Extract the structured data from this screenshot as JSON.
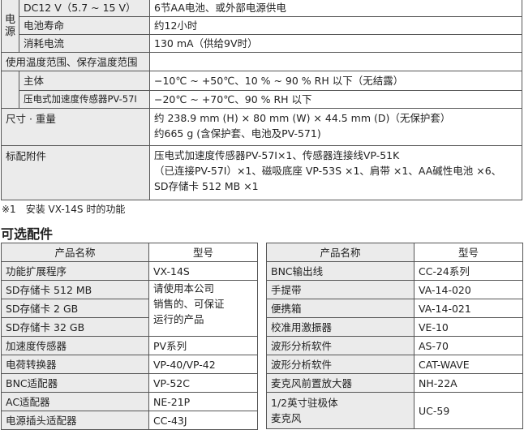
{
  "spec": {
    "power_group": "电源",
    "rows": [
      {
        "label": "DC12 V（5.7 ~ 15 V）",
        "value": "6节AA电池、或外部电源供电"
      },
      {
        "label": "电池寿命",
        "value": "约12小时"
      },
      {
        "label": "消耗电流",
        "value": "130 mA（供给9V时）"
      },
      {
        "label": "使用温度范围、保存温度范围",
        "value": ""
      },
      {
        "label": "主体",
        "value": "−10℃ ~ +50℃、10 % ~ 90 % RH 以下（无结露）"
      },
      {
        "label": "压电式加速度传感器PV-57I",
        "value": "−20℃ ~ +70℃、90 % RH 以下"
      },
      {
        "label": "尺寸 · 重量",
        "value_lines": [
          "约 238.9 mm (H) × 80 mm (W) × 44.5 mm (D)（无保护套）",
          "约665 g (含保护套、电池及PV-571)"
        ]
      },
      {
        "label": "标配附件",
        "value_lines": [
          "压电式加速度传感器PV-57I×1、传感器连接线VP-51K",
          "（已连接PV-57I）×1、磁吸底座 VP-53S ×1、肩带 ×1、AA碱性电池 ×6、",
          "SD存储卡 512 MB ×1"
        ]
      }
    ]
  },
  "footnote": "※1　安装 VX-14S 时的功能",
  "optional": {
    "title": "可选配件",
    "headers": {
      "name": "产品名称",
      "model": "型号"
    },
    "left": [
      {
        "name": "功能扩展程序",
        "model": "VX-14S"
      },
      {
        "name": "SD存储卡 512 MB",
        "model": "请使用本公司"
      },
      {
        "name": "SD存储卡 2 GB",
        "model": "销售的、可保证"
      },
      {
        "name": "SD存储卡 32 GB",
        "model": "运行的产品"
      },
      {
        "name": "加速度传感器",
        "model": "PV系列"
      },
      {
        "name": "电荷转换器",
        "model": "VP-40/VP-42"
      },
      {
        "name": "BNC适配器",
        "model": "VP-52C"
      },
      {
        "name": "AC适配器",
        "model": "NE-21P"
      },
      {
        "name": "电源插头适配器",
        "model": "CC-43J"
      }
    ],
    "right": [
      {
        "name": "BNC输出线",
        "model": "CC-24系列"
      },
      {
        "name": "手提带",
        "model": "VA-14-020"
      },
      {
        "name": "便携箱",
        "model": "VA-14-021"
      },
      {
        "name": "校准用激振器",
        "model": "VE-10"
      },
      {
        "name": "波形分析软件",
        "model": "AS-70"
      },
      {
        "name": "波形分析软件",
        "model": "CAT-WAVE"
      },
      {
        "name": "麦克风前置放大器",
        "model": "NH-22A"
      },
      {
        "name": "1/2英寸驻极体",
        "name2": "麦克风",
        "model": "UC-59"
      }
    ]
  }
}
